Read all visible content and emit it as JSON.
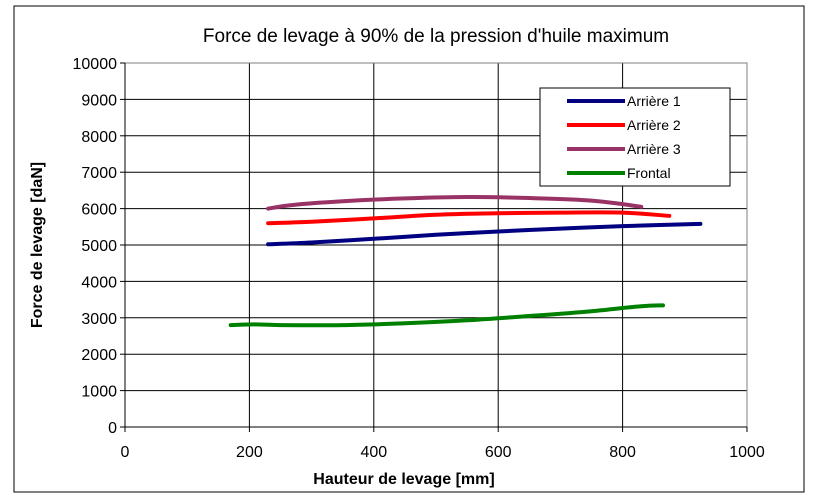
{
  "chart_data": {
    "type": "line",
    "title": "Force de levage à 90% de la pression d'huile maximum",
    "xlabel": "Hauteur de levage [mm]",
    "ylabel": "Force de levage [daN]",
    "xlim": [
      0,
      1000
    ],
    "ylim": [
      0,
      10000
    ],
    "x_ticks": [
      0,
      200,
      400,
      600,
      800,
      1000
    ],
    "y_ticks": [
      0,
      1000,
      2000,
      3000,
      4000,
      5000,
      6000,
      7000,
      8000,
      9000,
      10000
    ],
    "grid": true,
    "legend_position": "top-right",
    "series": [
      {
        "name": "Arrière 1",
        "color": "#000080",
        "x": [
          230,
          300,
          400,
          500,
          600,
          700,
          800,
          925
        ],
        "y": [
          5020,
          5070,
          5170,
          5280,
          5370,
          5450,
          5520,
          5580
        ]
      },
      {
        "name": "Arrière 2",
        "color": "#ff0000",
        "x": [
          230,
          300,
          400,
          500,
          600,
          700,
          800,
          875
        ],
        "y": [
          5600,
          5640,
          5730,
          5830,
          5870,
          5890,
          5890,
          5800
        ]
      },
      {
        "name": "Arrière 3",
        "color": "#993366",
        "x": [
          230,
          270,
          350,
          450,
          550,
          650,
          750,
          830
        ],
        "y": [
          6000,
          6100,
          6200,
          6280,
          6320,
          6290,
          6220,
          6050
        ]
      },
      {
        "name": "Frontal",
        "color": "#008000",
        "x": [
          170,
          210,
          250,
          350,
          450,
          550,
          650,
          750,
          830,
          865
        ],
        "y": [
          2800,
          2820,
          2800,
          2800,
          2850,
          2930,
          3050,
          3180,
          3320,
          3340
        ]
      }
    ]
  }
}
